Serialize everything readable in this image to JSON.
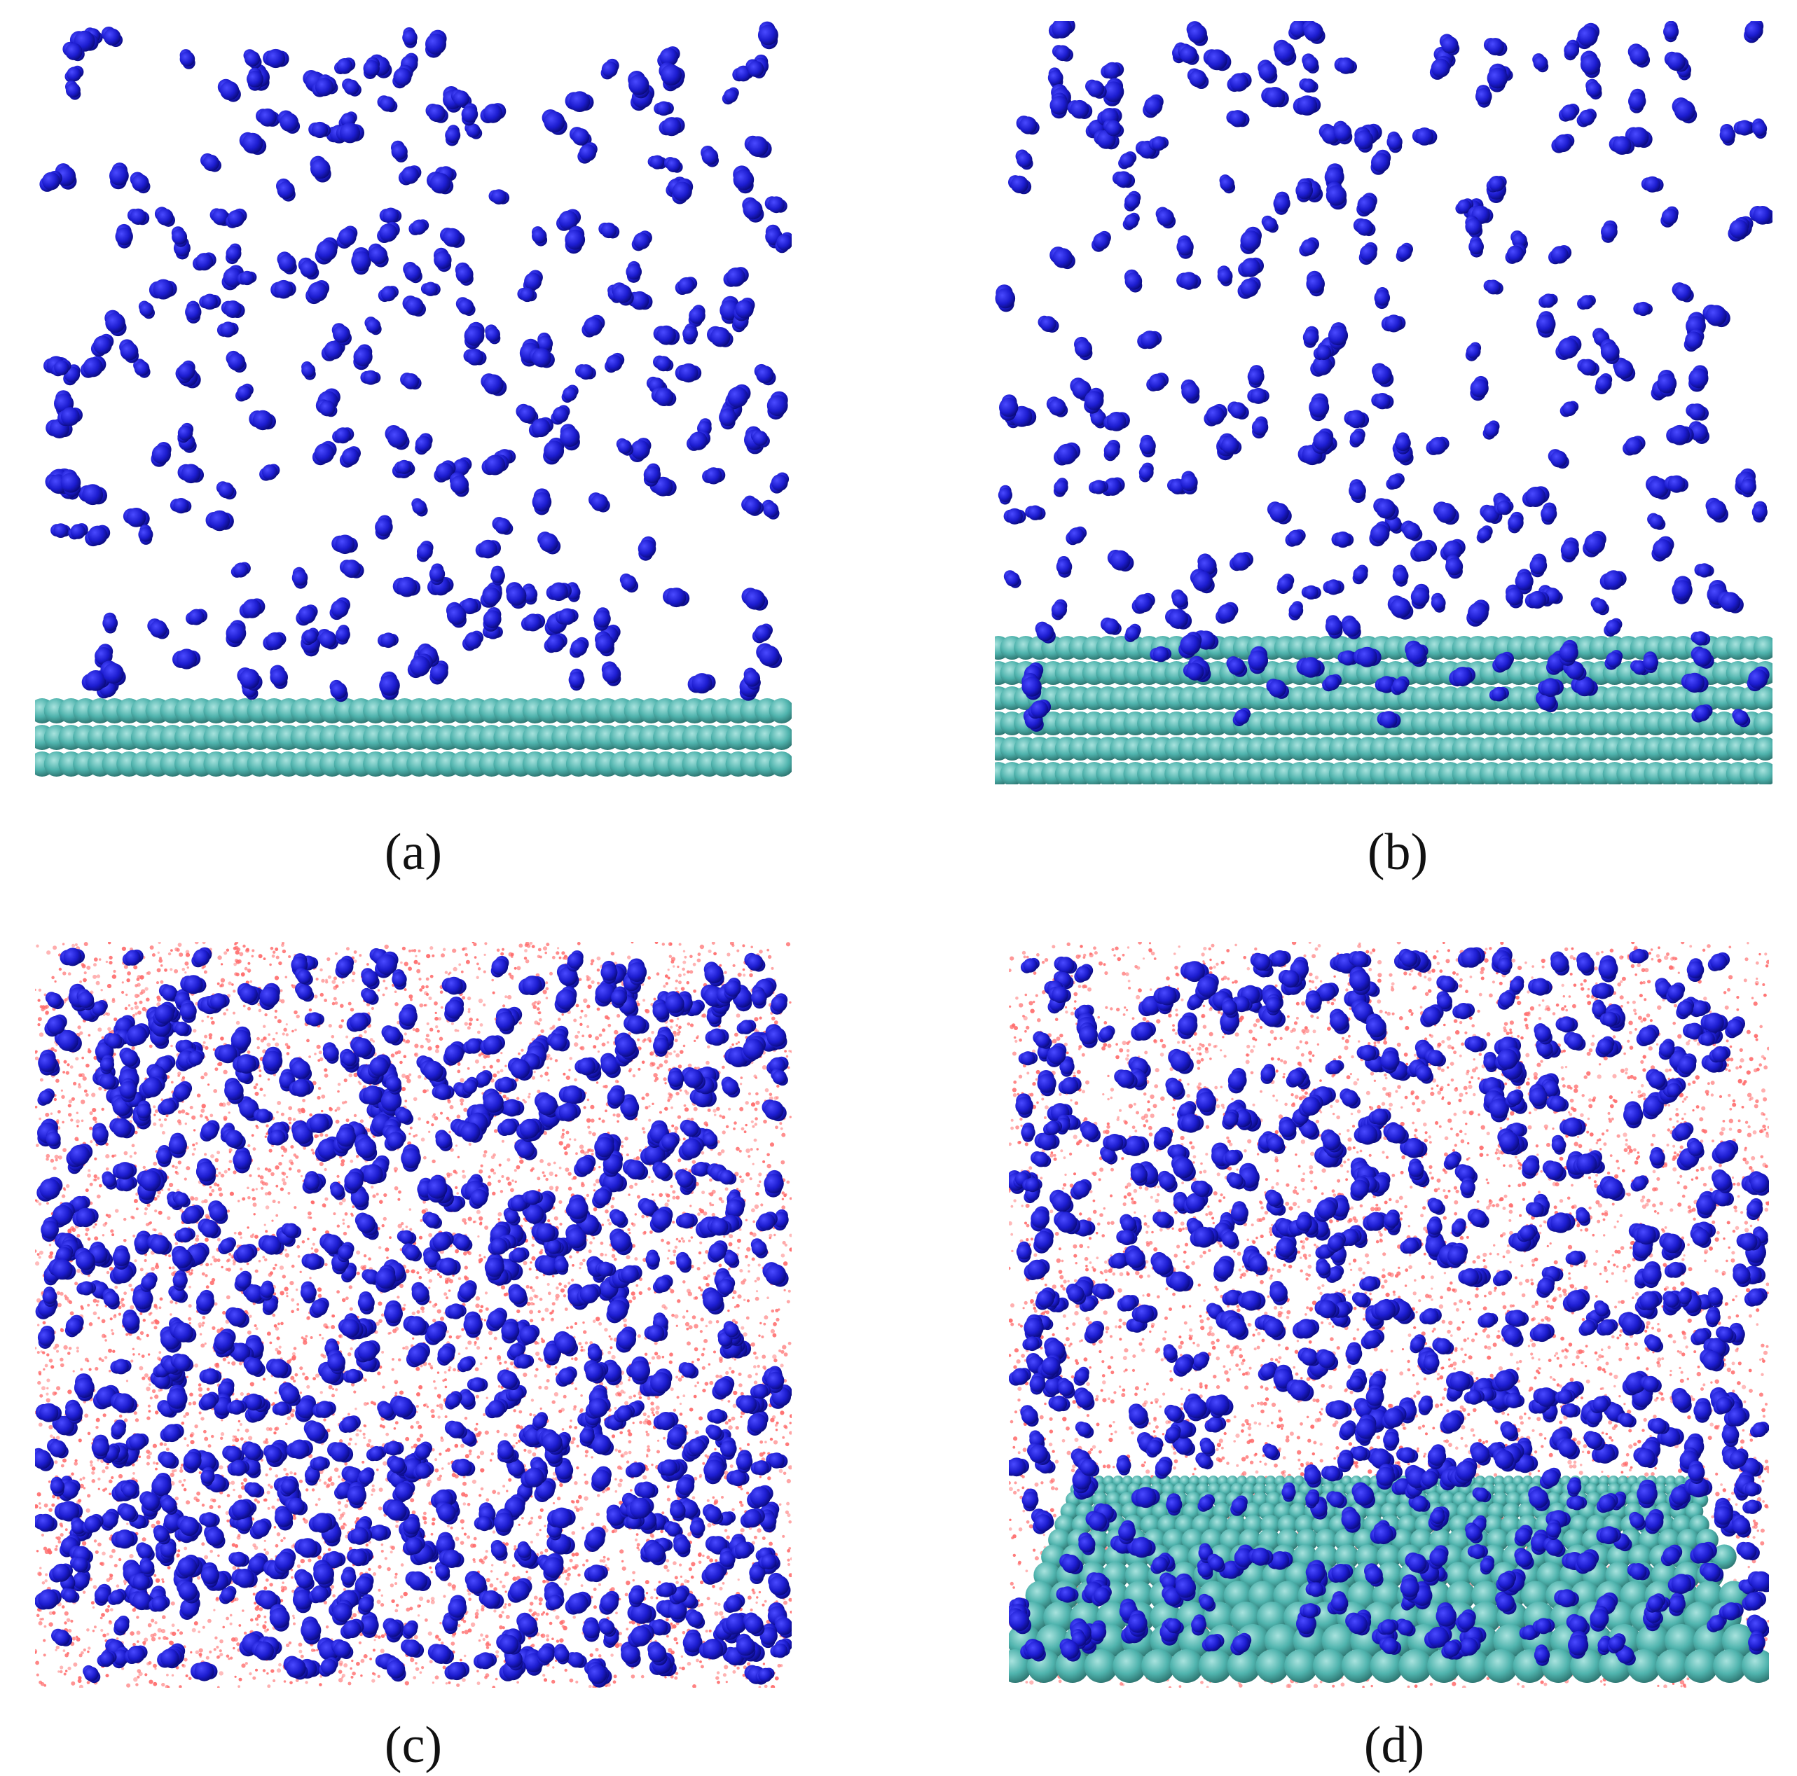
{
  "figure": {
    "panels": [
      {
        "id": "a",
        "label": "(a)",
        "content": "molecules-above-flat-slab"
      },
      {
        "id": "b",
        "label": "(b)",
        "content": "molecules-above-stepped-slab"
      },
      {
        "id": "c",
        "label": "(c)",
        "content": "molecules-in-dense-solvent"
      },
      {
        "id": "d",
        "label": "(d)",
        "content": "molecules-in-solvent-above-slab"
      }
    ]
  },
  "colors": {
    "molecule": "#1c1ccf",
    "molecule_highlight": "#4a4aff",
    "molecule_shadow": "#0a0a7a",
    "slab_atom": "#4fb3ad",
    "slab_atom_highlight": "#a8e3de",
    "slab_atom_shadow": "#2a6f6b",
    "solvent_dot": "#ff6b6b",
    "background": "#ffffff"
  },
  "icons": {
    "molecule": "blue-sphere",
    "slab": "teal-sphere-rows",
    "solvent": "red-dot"
  }
}
